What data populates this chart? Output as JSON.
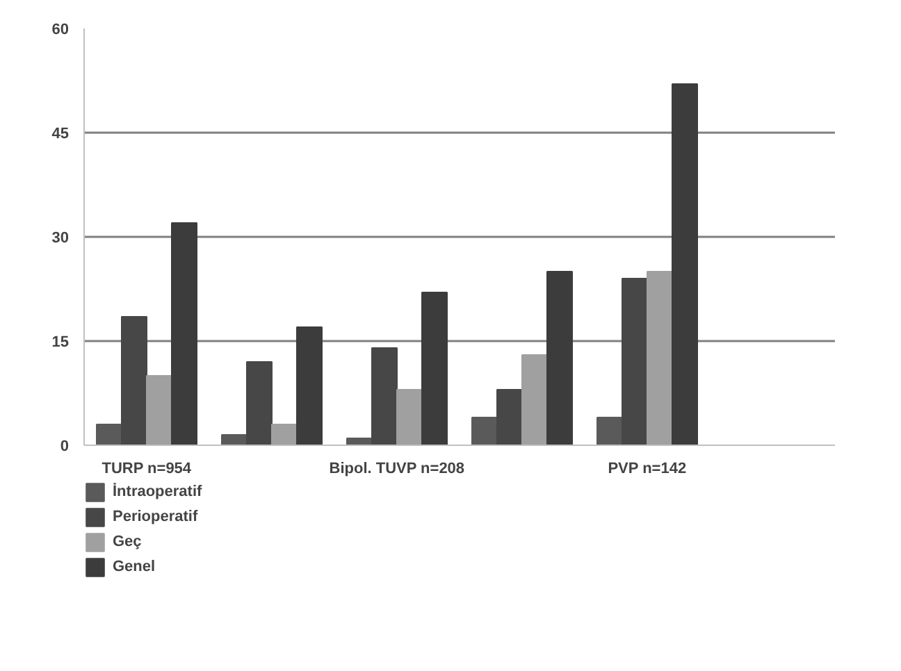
{
  "chart_data": {
    "type": "bar",
    "categories": [
      "TURP n=954",
      null,
      "Bipol. TUVP n=208",
      null,
      "PVP n=142",
      null
    ],
    "series": [
      {
        "name": "İntraoperatif",
        "color": "#5a5a5a",
        "values": [
          3,
          1.5,
          1,
          4,
          4,
          null
        ]
      },
      {
        "name": "Perioperatif",
        "color": "#474747",
        "values": [
          18.5,
          12,
          14,
          8,
          24,
          null
        ]
      },
      {
        "name": "Geç",
        "color": "#a0a0a0",
        "values": [
          10,
          3,
          8,
          13,
          25,
          null
        ]
      },
      {
        "name": "Genel",
        "color": "#3c3c3c",
        "values": [
          32,
          17,
          22,
          25,
          52,
          null
        ]
      }
    ],
    "ylim": [
      0,
      60
    ],
    "yticks": [
      0,
      15,
      30,
      45,
      60
    ],
    "grid": "y",
    "legend": "bottom left"
  }
}
